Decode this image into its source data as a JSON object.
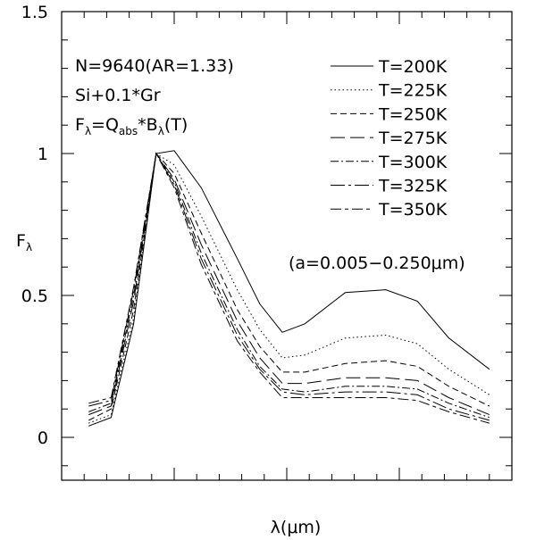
{
  "chart_data": {
    "type": "line",
    "xlabel": "λ(μm)",
    "ylabel": "F_λ",
    "ylim": [
      -0.15,
      1.5
    ],
    "xlim": [
      0,
      1
    ],
    "y_ticks": [
      {
        "value": 0,
        "label": "0"
      },
      {
        "value": 0.5,
        "label": "0.5"
      },
      {
        "value": 1,
        "label": "1"
      },
      {
        "value": 1.5,
        "label": "1.5"
      }
    ],
    "annotations": {
      "line1": "N=9640(AR=1.33)",
      "line2": "Si+0.1*Gr",
      "line3_main": "F",
      "line3_sub1": "λ",
      "line3_mid": "=Q",
      "line3_sub2": "abs",
      "line3_mid2": "*B",
      "line3_sub3": "λ",
      "line3_end": "(T)",
      "size_range": "(a=0.005−0.250μm)"
    },
    "x": [
      0.06,
      0.11,
      0.16,
      0.21,
      0.25,
      0.31,
      0.39,
      0.44,
      0.49,
      0.54,
      0.63,
      0.72,
      0.79,
      0.86,
      0.95
    ],
    "series": [
      {
        "name": "T=200K",
        "dash": "",
        "values": [
          0.04,
          0.07,
          0.4,
          1.0,
          1.01,
          0.88,
          0.63,
          0.47,
          0.37,
          0.4,
          0.51,
          0.52,
          0.48,
          0.35,
          0.24
        ]
      },
      {
        "name": "T=225K",
        "dash": "1.5,3",
        "values": [
          0.05,
          0.08,
          0.42,
          1.0,
          0.96,
          0.78,
          0.52,
          0.38,
          0.28,
          0.29,
          0.35,
          0.36,
          0.33,
          0.24,
          0.15
        ]
      },
      {
        "name": "T=250K",
        "dash": "7,4",
        "values": [
          0.06,
          0.1,
          0.45,
          1.0,
          0.93,
          0.72,
          0.45,
          0.32,
          0.23,
          0.23,
          0.26,
          0.27,
          0.25,
          0.18,
          0.11
        ]
      },
      {
        "name": "T=275K",
        "dash": "16,6",
        "values": [
          0.08,
          0.11,
          0.48,
          1.0,
          0.91,
          0.68,
          0.41,
          0.28,
          0.19,
          0.19,
          0.21,
          0.21,
          0.2,
          0.14,
          0.08
        ]
      },
      {
        "name": "T=300K",
        "dash": "9,3,2,3",
        "values": [
          0.09,
          0.12,
          0.5,
          1.0,
          0.9,
          0.65,
          0.38,
          0.25,
          0.17,
          0.16,
          0.18,
          0.18,
          0.17,
          0.12,
          0.07
        ]
      },
      {
        "name": "T=325K",
        "dash": "16,4,3,4",
        "values": [
          0.11,
          0.13,
          0.52,
          1.0,
          0.89,
          0.63,
          0.36,
          0.24,
          0.16,
          0.15,
          0.16,
          0.16,
          0.15,
          0.1,
          0.06
        ]
      },
      {
        "name": "T=350K",
        "dash": "12,4,4,4",
        "values": [
          0.12,
          0.14,
          0.53,
          1.0,
          0.88,
          0.61,
          0.34,
          0.23,
          0.14,
          0.14,
          0.14,
          0.14,
          0.13,
          0.09,
          0.05
        ]
      }
    ]
  }
}
